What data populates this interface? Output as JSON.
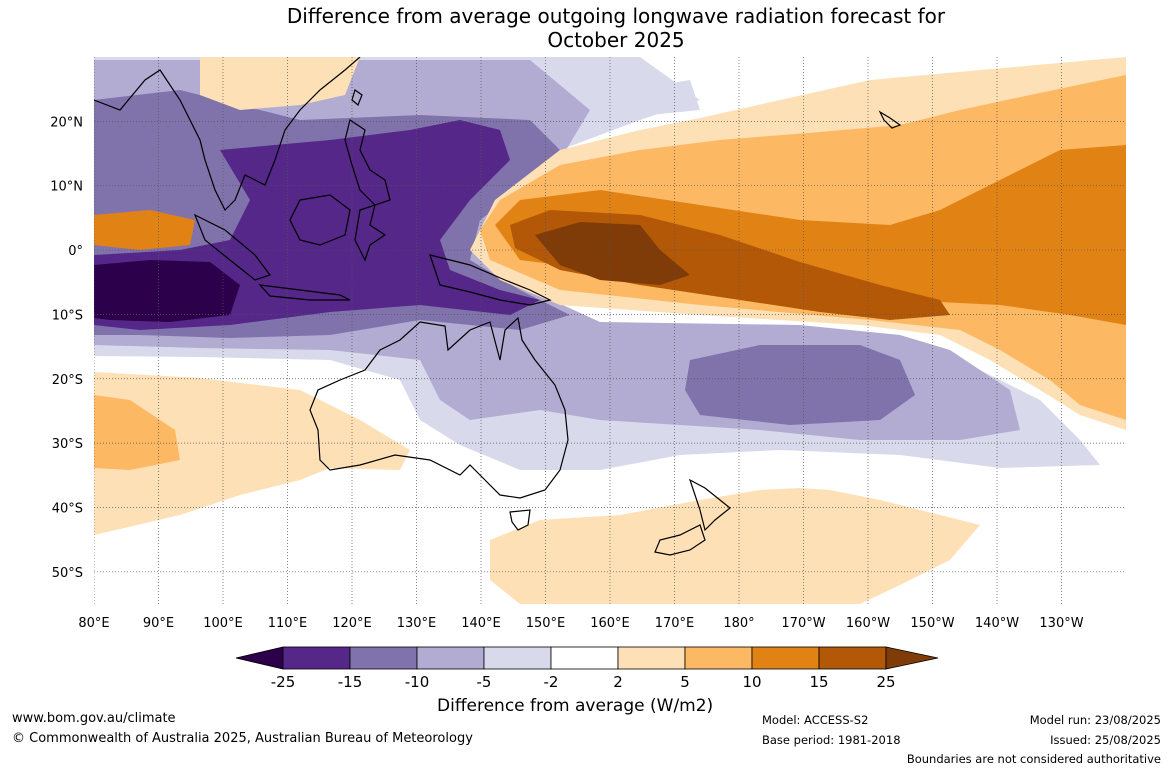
{
  "title": {
    "line1": "Difference from average outgoing longwave radiation forecast for",
    "line2": "October 2025"
  },
  "map": {
    "lon_range": [
      80,
      240
    ],
    "lat_range": [
      -55,
      30
    ],
    "lon_ticks": [
      {
        "lon": 80,
        "label": "80°E"
      },
      {
        "lon": 90,
        "label": "90°E"
      },
      {
        "lon": 100,
        "label": "100°E"
      },
      {
        "lon": 110,
        "label": "110°E"
      },
      {
        "lon": 120,
        "label": "120°E"
      },
      {
        "lon": 130,
        "label": "130°E"
      },
      {
        "lon": 140,
        "label": "140°E"
      },
      {
        "lon": 150,
        "label": "150°E"
      },
      {
        "lon": 160,
        "label": "160°E"
      },
      {
        "lon": 170,
        "label": "170°E"
      },
      {
        "lon": 180,
        "label": "180°"
      },
      {
        "lon": 190,
        "label": "170°W"
      },
      {
        "lon": 200,
        "label": "160°W"
      },
      {
        "lon": 210,
        "label": "150°W"
      },
      {
        "lon": 220,
        "label": "140°W"
      },
      {
        "lon": 230,
        "label": "130°W"
      }
    ],
    "lat_ticks": [
      {
        "lat": 20,
        "label": "20°N"
      },
      {
        "lat": 10,
        "label": "10°N"
      },
      {
        "lat": 0,
        "label": "0°"
      },
      {
        "lat": -10,
        "label": "10°S"
      },
      {
        "lat": -20,
        "label": "20°S"
      },
      {
        "lat": -30,
        "label": "30°S"
      },
      {
        "lat": -40,
        "label": "40°S"
      },
      {
        "lat": -50,
        "label": "50°S"
      }
    ],
    "gridlines": true,
    "colors": {
      "-25": "#2d004b",
      "-15": "#542788",
      "-10": "#8073ac",
      "-5": "#b2abd2",
      "-2": "#d8daeb",
      "2": "#fee0b6",
      "5": "#fdb863",
      "10": "#e08214",
      "15": "#b35806",
      "25": "#7f3b08"
    }
  },
  "colorbar": {
    "ticks": [
      "-25",
      "-15",
      "-10",
      "-5",
      "-2",
      "2",
      "5",
      "10",
      "15",
      "25"
    ],
    "bins": [
      "#2d004b",
      "#542788",
      "#8073ac",
      "#b2abd2",
      "#d8daeb",
      "#ffffff",
      "#fee0b6",
      "#fdb863",
      "#e08214",
      "#b35806",
      "#7f3b08"
    ],
    "label": "Difference from average (W/m2)"
  },
  "footer": {
    "url": "www.bom.gov.au/climate",
    "copyright": "© Commonwealth of Australia 2025, Australian Bureau of Meteorology",
    "model": "Model: ACCESS-S2",
    "base_period": "Base period: 1981-2018",
    "model_run": "Model run: 23/08/2025",
    "issued": "Issued: 25/08/2025",
    "disclaimer": "Boundaries are not considered authoritative"
  }
}
